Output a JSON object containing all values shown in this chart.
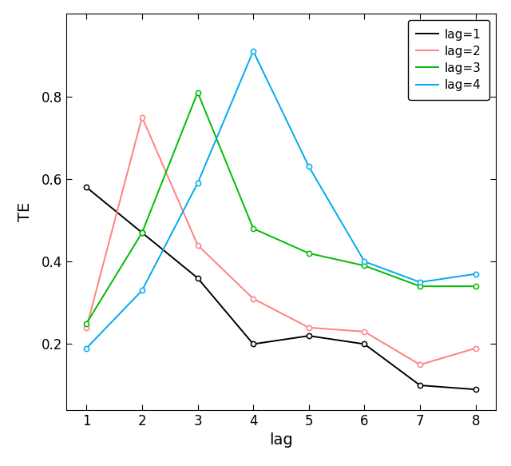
{
  "x": [
    1,
    2,
    3,
    4,
    5,
    6,
    7,
    8
  ],
  "lag1": [
    0.58,
    0.47,
    0.36,
    0.2,
    0.22,
    0.2,
    0.1,
    0.09
  ],
  "lag2": [
    0.24,
    0.75,
    0.44,
    0.31,
    0.24,
    0.23,
    0.15,
    0.19
  ],
  "lag3": [
    0.25,
    0.47,
    0.81,
    0.48,
    0.42,
    0.39,
    0.34,
    0.34
  ],
  "lag4": [
    0.19,
    0.33,
    0.59,
    0.91,
    0.63,
    0.4,
    0.35,
    0.37
  ],
  "colors": {
    "lag1": "#000000",
    "lag2": "#FF8080",
    "lag3": "#00BB00",
    "lag4": "#00AAEE"
  },
  "legend_labels": [
    "lag=1",
    "lag=2",
    "lag=3",
    "lag=4"
  ],
  "xlabel": "lag",
  "ylabel": "TE",
  "xlim": [
    0.64,
    8.36
  ],
  "ylim": [
    0.04,
    1.0
  ],
  "xticks": [
    1,
    2,
    3,
    4,
    5,
    6,
    7,
    8
  ],
  "yticks": [
    0.2,
    0.4,
    0.6,
    0.8
  ],
  "background_color": "#FFFFFF",
  "marker": "o",
  "marker_size": 4.5,
  "linewidth": 1.4
}
